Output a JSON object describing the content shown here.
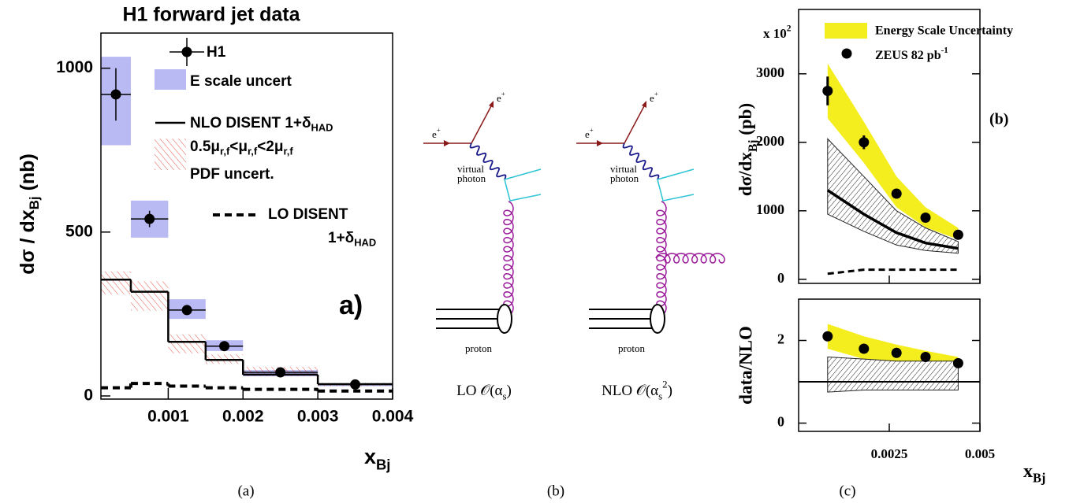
{
  "chart_data": [
    {
      "type": "histogram",
      "title": "H1 forward jet data",
      "x_label": [
        "x",
        {
          "sub": "Bj"
        }
      ],
      "y_label": [
        "dσ / dx",
        {
          "sub": "Bj"
        },
        " (nb)"
      ],
      "annotation": "a)",
      "bins": [
        0.0001,
        0.0005,
        0.001,
        0.0015,
        0.002,
        0.003,
        0.004
      ],
      "xlim": [
        0.0001,
        0.004
      ],
      "xticks": [
        0.001,
        0.002,
        0.003,
        0.004
      ],
      "ylim": [
        0,
        1100
      ],
      "yticks": [
        0,
        500,
        1000
      ],
      "series": [
        {
          "name": "H1",
          "style": "points",
          "color": "#000000",
          "values": [
            920,
            540,
            262,
            152,
            72,
            35
          ],
          "errors": [
            80,
            25,
            10,
            8,
            5,
            3
          ]
        },
        {
          "name": "E scale uncert",
          "style": "box",
          "color": "#b9b9f3",
          "lower": [
            765,
            483,
            235,
            137,
            60,
            30
          ],
          "upper": [
            1035,
            596,
            295,
            170,
            79,
            38
          ]
        },
        {
          "name": [
            "NLO DISENT 1+δ",
            {
              "sub": "HAD"
            }
          ],
          "style": "step",
          "color": "#000000",
          "values": [
            355,
            318,
            165,
            110,
            65,
            36
          ]
        },
        {
          "name": [
            "0.5μ",
            {
              "sub": "r,f"
            },
            "<μ",
            {
              "sub": "r,f"
            },
            "<2μ",
            {
              "sub": "r,f"
            },
            {
              "next_line": "PDF uncert."
            }
          ],
          "style": "hatch",
          "color": "#e8574c",
          "lower": [
            310,
            260,
            130,
            98,
            60,
            30
          ],
          "upper": [
            380,
            350,
            188,
            127,
            89,
            40
          ]
        },
        {
          "name": [
            "LO DISENT",
            {
              "next_line": "1+δ"
            },
            {
              "sub": "HAD"
            }
          ],
          "style": "dashed-step",
          "color": "#000000",
          "values": [
            25,
            38,
            30,
            25,
            20,
            15
          ]
        }
      ]
    },
    {
      "type": "line",
      "y_label": [
        "dσ/dx",
        {
          "sub": "Bj"
        },
        " (pb)"
      ],
      "y_multiplier": [
        "x 10",
        {
          "sup": "2"
        }
      ],
      "annotation": "(b)",
      "x": [
        0.0008,
        0.0018,
        0.0027,
        0.0035,
        0.0044
      ],
      "xlim": [
        0,
        0.005
      ],
      "xticks": [
        0.0025,
        0.005
      ],
      "xtick_labels": false,
      "ylim": [
        -60,
        3940
      ],
      "yticks": [
        0,
        1000,
        2000,
        3000
      ],
      "series": [
        {
          "name": "Energy Scale Uncertainty",
          "style": "band",
          "color": "#f5ee1e",
          "lower": [
            2350,
            1700,
            1050,
            760,
            580
          ],
          "upper": [
            3150,
            2300,
            1500,
            1050,
            750
          ]
        },
        {
          "style": "hatch-band",
          "color": "#222222",
          "lower": [
            950,
            700,
            500,
            420,
            380
          ],
          "upper": [
            2050,
            1500,
            1000,
            750,
            550
          ]
        },
        {
          "style": "line",
          "color": "#000000",
          "values": [
            1300,
            950,
            680,
            530,
            450
          ]
        },
        {
          "style": "dashed",
          "color": "#000000",
          "values": [
            80,
            140,
            140,
            140,
            140
          ]
        },
        {
          "name": [
            "ZEUS 82 pb",
            {
              "sup": "-1"
            }
          ],
          "style": "points",
          "color": "#000000",
          "values": [
            2750,
            2000,
            1250,
            900,
            650
          ],
          "errors": [
            210,
            100,
            50,
            50,
            40
          ]
        }
      ]
    },
    {
      "type": "line",
      "y_label": "data/NLO",
      "x_label": [
        "x",
        {
          "sub": "Bj"
        }
      ],
      "x": [
        0.0008,
        0.0018,
        0.0027,
        0.0035,
        0.0044
      ],
      "xlim": [
        0,
        0.005
      ],
      "xticks": [
        0.0025,
        0.005
      ],
      "xtick_labels": true,
      "ylim": [
        -0.2,
        3
      ],
      "yticks": [
        0,
        2
      ],
      "reference": 1,
      "series": [
        {
          "style": "band",
          "color": "#f5ee1e",
          "lower": [
            1.8,
            1.55,
            1.45,
            1.35,
            1.3
          ],
          "upper": [
            2.4,
            2.1,
            1.9,
            1.75,
            1.6
          ]
        },
        {
          "style": "hatch-band",
          "color": "#222222",
          "lower": [
            0.75,
            0.8,
            0.8,
            0.8,
            0.8
          ],
          "upper": [
            1.6,
            1.55,
            1.5,
            1.5,
            1.5
          ]
        },
        {
          "style": "points",
          "color": "#000000",
          "values": [
            2.1,
            1.8,
            1.7,
            1.6,
            1.45
          ],
          "errors": [
            0.1,
            0.07,
            0.07,
            0.06,
            0.06
          ]
        }
      ]
    }
  ],
  "diagrams": [
    {
      "electron_in": [
        "e",
        {
          "sup": "+"
        }
      ],
      "electron_out": [
        "e",
        {
          "sup": "+"
        }
      ],
      "photon": [
        "virtual",
        {
          "next_line": "photon"
        }
      ],
      "proton": "proton",
      "caption": [
        "LO 𝒪(α",
        {
          "sub": "s"
        },
        ")"
      ]
    },
    {
      "electron_in": [
        "e",
        {
          "sup": "+"
        }
      ],
      "electron_out": [
        "e",
        {
          "sup": "+"
        }
      ],
      "photon": [
        "virtual",
        {
          "next_line": "photon"
        }
      ],
      "proton": "proton",
      "caption": [
        "NLO 𝒪(α",
        {
          "sub": "s"
        },
        {
          "sup": "2"
        },
        ")"
      ]
    }
  ],
  "captions": [
    "(a)",
    "(b)",
    "(c)"
  ]
}
